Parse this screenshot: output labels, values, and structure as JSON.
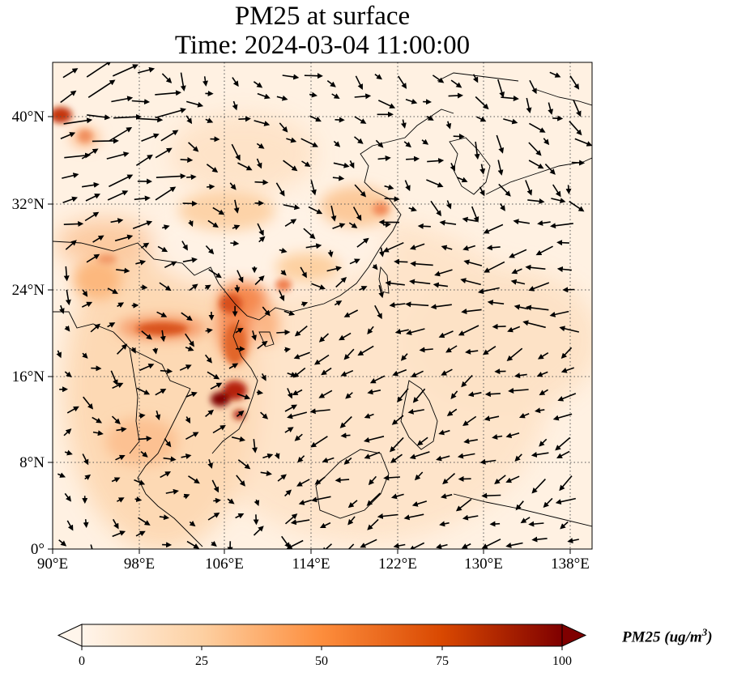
{
  "title": {
    "line1": "PM25 at surface",
    "line2": "Time: 2024-03-04 11:00:00"
  },
  "axes": {
    "lon_ticks": [
      "90°E",
      "98°E",
      "106°E",
      "114°E",
      "122°E",
      "130°E",
      "138°E"
    ],
    "lat_ticks": [
      "0°",
      "8°N",
      "16°N",
      "24°N",
      "32°N",
      "40°N"
    ]
  },
  "colorbar": {
    "label_main": "PM25 (ug/m",
    "label_exp": "3",
    "label_close": ")",
    "ticks": [
      "0",
      "25",
      "50",
      "75",
      "100"
    ],
    "colors": [
      "#fff5eb",
      "#fdd0a2",
      "#fd8d3c",
      "#d94801",
      "#7f0000"
    ]
  },
  "colors": {
    "ocean_haze": "#fee6ce",
    "hotspot_max": "#7f0000",
    "gridline": "#555555"
  }
}
